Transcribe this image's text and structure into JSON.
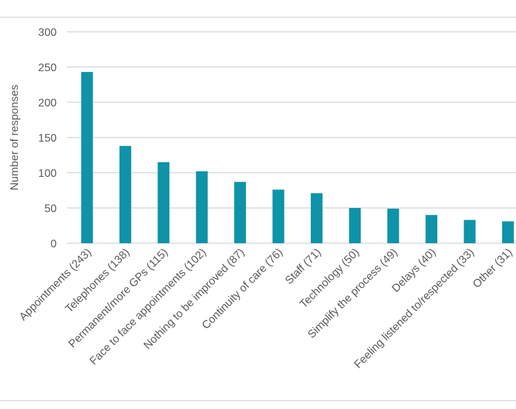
{
  "chart_data": {
    "type": "bar",
    "title": "",
    "xlabel": "",
    "ylabel": "Number of responses",
    "ylim": [
      0,
      300
    ],
    "yticks": [
      0,
      50,
      100,
      150,
      200,
      250,
      300
    ],
    "grid": true,
    "bar_color": "#0e93a8",
    "categories": [
      "Appointments (243)",
      "Telephones (138)",
      "Permanent/more GPs (115)",
      "Face to face appointments (102)",
      "Nothing to be improved (87)",
      "Continuity of care (76)",
      "Staff (71)",
      "Technology (50)",
      "Simplify the process (49)",
      "Delays (40)",
      "Feeling listened to/respected (33)",
      "Other (31)"
    ],
    "values": [
      243,
      138,
      115,
      102,
      87,
      76,
      71,
      50,
      49,
      40,
      33,
      31
    ]
  }
}
